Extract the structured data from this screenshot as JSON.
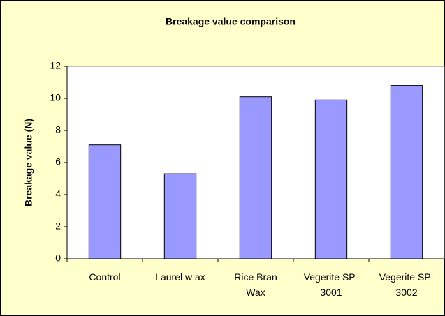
{
  "chart_data": {
    "type": "bar",
    "title": "Breakage value comparison",
    "y_label": "Breakage value (N)",
    "categories": [
      "Control",
      "Laurel w ax",
      "Rice Bran Wax",
      "Vegerite SP-3001",
      "Vegerite SP-3002"
    ],
    "values": [
      7.1,
      5.3,
      10.1,
      9.9,
      10.8
    ],
    "color": "#9999ff",
    "ylim": [
      0,
      12
    ],
    "yticks": [
      0,
      2,
      4,
      6,
      8,
      10,
      12
    ],
    "grid": false
  }
}
